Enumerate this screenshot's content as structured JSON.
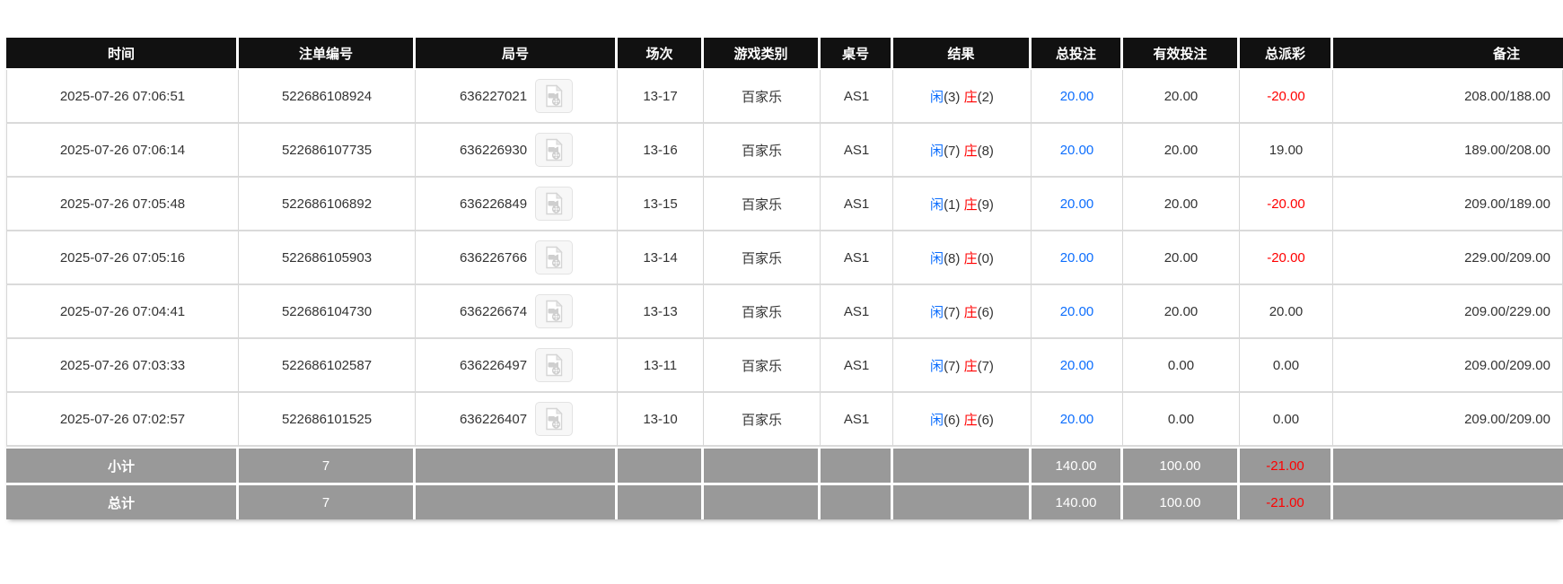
{
  "colors": {
    "header_bg": "#111111",
    "footer_bg": "#999999",
    "accent_blue": "#0d6efd",
    "negative_red": "#ff0000"
  },
  "icons": {
    "round_video_icon": "video-file-icon"
  },
  "table": {
    "columns": [
      {
        "label": "时间"
      },
      {
        "label": "注单编号"
      },
      {
        "label": "局号"
      },
      {
        "label": "场次"
      },
      {
        "label": "游戏类别"
      },
      {
        "label": "桌号"
      },
      {
        "label": "结果"
      },
      {
        "label": "总投注"
      },
      {
        "label": "有效投注"
      },
      {
        "label": "总派彩"
      },
      {
        "label": "备注"
      }
    ],
    "rows": [
      {
        "time": "2025-07-26 07:06:51",
        "bet_id": "522686108924",
        "round": "636227021",
        "session": "13-17",
        "game_type": "百家乐",
        "table_no": "AS1",
        "result": {
          "player_label": "闲",
          "player_num": "(3)",
          "banker_label": "庄",
          "banker_num": "(2)"
        },
        "total_bet": "20.00",
        "valid_bet": "20.00",
        "payout": "-20.00",
        "remark": "208.00/188.00"
      },
      {
        "time": "2025-07-26 07:06:14",
        "bet_id": "522686107735",
        "round": "636226930",
        "session": "13-16",
        "game_type": "百家乐",
        "table_no": "AS1",
        "result": {
          "player_label": "闲",
          "player_num": "(7)",
          "banker_label": "庄",
          "banker_num": "(8)"
        },
        "total_bet": "20.00",
        "valid_bet": "20.00",
        "payout": "19.00",
        "remark": "189.00/208.00"
      },
      {
        "time": "2025-07-26 07:05:48",
        "bet_id": "522686106892",
        "round": "636226849",
        "session": "13-15",
        "game_type": "百家乐",
        "table_no": "AS1",
        "result": {
          "player_label": "闲",
          "player_num": "(1)",
          "banker_label": "庄",
          "banker_num": "(9)"
        },
        "total_bet": "20.00",
        "valid_bet": "20.00",
        "payout": "-20.00",
        "remark": "209.00/189.00"
      },
      {
        "time": "2025-07-26 07:05:16",
        "bet_id": "522686105903",
        "round": "636226766",
        "session": "13-14",
        "game_type": "百家乐",
        "table_no": "AS1",
        "result": {
          "player_label": "闲",
          "player_num": "(8)",
          "banker_label": "庄",
          "banker_num": "(0)"
        },
        "total_bet": "20.00",
        "valid_bet": "20.00",
        "payout": "-20.00",
        "remark": "229.00/209.00"
      },
      {
        "time": "2025-07-26 07:04:41",
        "bet_id": "522686104730",
        "round": "636226674",
        "session": "13-13",
        "game_type": "百家乐",
        "table_no": "AS1",
        "result": {
          "player_label": "闲",
          "player_num": "(7)",
          "banker_label": "庄",
          "banker_num": "(6)"
        },
        "total_bet": "20.00",
        "valid_bet": "20.00",
        "payout": "20.00",
        "remark": "209.00/229.00"
      },
      {
        "time": "2025-07-26 07:03:33",
        "bet_id": "522686102587",
        "round": "636226497",
        "session": "13-11",
        "game_type": "百家乐",
        "table_no": "AS1",
        "result": {
          "player_label": "闲",
          "player_num": "(7)",
          "banker_label": "庄",
          "banker_num": "(7)"
        },
        "total_bet": "20.00",
        "valid_bet": "0.00",
        "payout": "0.00",
        "remark": "209.00/209.00"
      },
      {
        "time": "2025-07-26 07:02:57",
        "bet_id": "522686101525",
        "round": "636226407",
        "session": "13-10",
        "game_type": "百家乐",
        "table_no": "AS1",
        "result": {
          "player_label": "闲",
          "player_num": "(6)",
          "banker_label": "庄",
          "banker_num": "(6)"
        },
        "total_bet": "20.00",
        "valid_bet": "0.00",
        "payout": "0.00",
        "remark": "209.00/209.00"
      }
    ],
    "footer_rows": [
      {
        "label": "小计",
        "count": "7",
        "total_bet": "140.00",
        "valid_bet": "100.00",
        "payout": "-21.00"
      },
      {
        "label": "总计",
        "count": "7",
        "total_bet": "140.00",
        "valid_bet": "100.00",
        "payout": "-21.00"
      }
    ]
  }
}
